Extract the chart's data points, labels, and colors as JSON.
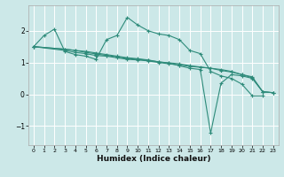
{
  "xlabel": "Humidex (Indice chaleur)",
  "background_color": "#cce8e8",
  "grid_color": "#ffffff",
  "line_color": "#2e8b7a",
  "xlim": [
    -0.5,
    23.5
  ],
  "ylim": [
    -1.6,
    2.8
  ],
  "xticks": [
    0,
    1,
    2,
    3,
    4,
    5,
    6,
    7,
    8,
    9,
    10,
    11,
    12,
    13,
    14,
    15,
    16,
    17,
    18,
    19,
    20,
    21,
    22,
    23
  ],
  "yticks": [
    -1,
    0,
    1,
    2
  ],
  "series": [
    {
      "x": [
        0,
        1,
        2,
        3,
        4,
        5,
        6,
        7,
        8,
        9,
        10,
        11,
        12,
        13,
        14,
        15,
        16,
        17,
        18,
        19,
        20,
        21,
        22
      ],
      "y": [
        1.5,
        1.85,
        2.05,
        1.35,
        1.25,
        1.2,
        1.1,
        1.72,
        1.85,
        2.42,
        2.18,
        2.0,
        1.9,
        1.85,
        1.72,
        1.38,
        1.28,
        0.72,
        0.58,
        0.5,
        0.32,
        -0.05,
        -0.05
      ]
    },
    {
      "x": [
        0,
        3,
        4,
        5,
        6,
        7,
        8,
        9,
        10,
        11,
        12,
        13,
        14,
        15,
        16,
        17,
        18,
        19,
        20,
        21,
        22,
        23
      ],
      "y": [
        1.5,
        1.38,
        1.32,
        1.28,
        1.22,
        1.2,
        1.15,
        1.1,
        1.08,
        1.05,
        1.0,
        0.96,
        0.92,
        0.88,
        0.85,
        0.82,
        0.75,
        0.7,
        0.62,
        0.55,
        0.08,
        0.05
      ]
    },
    {
      "x": [
        0,
        3,
        4,
        5,
        6,
        7,
        8,
        9,
        10,
        11,
        12,
        13,
        14,
        15,
        18,
        19,
        20,
        21,
        22,
        23
      ],
      "y": [
        1.5,
        1.42,
        1.38,
        1.32,
        1.27,
        1.22,
        1.18,
        1.13,
        1.1,
        1.07,
        1.02,
        0.99,
        0.96,
        0.9,
        0.78,
        0.72,
        0.62,
        0.52,
        0.08,
        0.05
      ]
    },
    {
      "x": [
        0,
        3,
        4,
        5,
        6,
        7,
        8,
        9,
        10,
        11,
        12,
        13,
        14,
        15,
        16,
        17,
        18,
        19,
        20,
        21,
        22,
        23
      ],
      "y": [
        1.5,
        1.42,
        1.38,
        1.35,
        1.3,
        1.25,
        1.2,
        1.15,
        1.12,
        1.08,
        1.02,
        0.98,
        0.9,
        0.82,
        0.78,
        -1.22,
        0.35,
        0.62,
        0.58,
        0.5,
        0.08,
        0.05
      ]
    }
  ]
}
